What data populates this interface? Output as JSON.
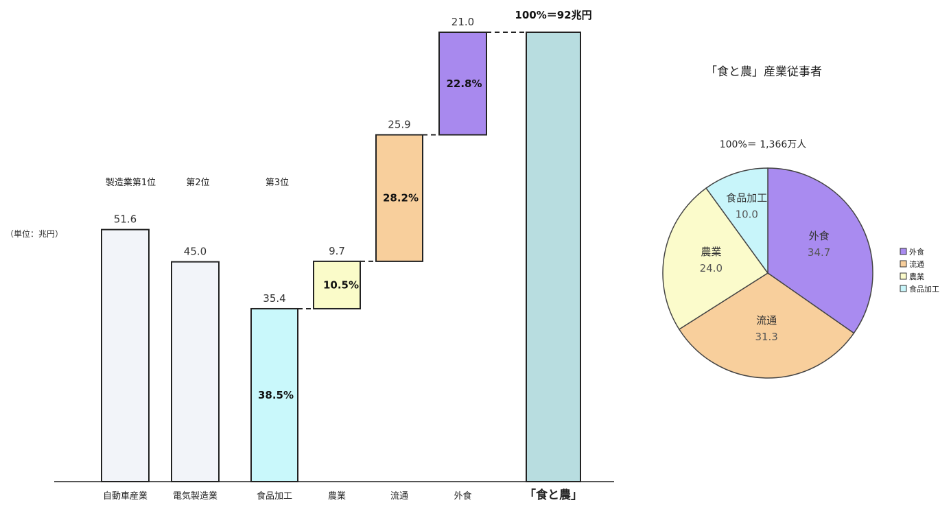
{
  "chart_data": [
    {
      "type": "bar",
      "subtype": "waterfall",
      "unit_note": "（単位：兆円）",
      "total_label": "100%＝92兆円",
      "ranks": [
        "製造業第1位",
        "第2位",
        "第3位"
      ],
      "categories": [
        "自動車産業",
        "電気製造業",
        "食品加工",
        "農業",
        "流通",
        "外食",
        "「食と農」"
      ],
      "values": [
        51.6,
        45.0,
        35.4,
        9.7,
        25.9,
        21.0,
        92
      ],
      "value_labels": [
        "51.6",
        "45.0",
        "35.4",
        "9.7",
        "25.9",
        "21.0",
        ""
      ],
      "share_labels": [
        "",
        "",
        "38.5%",
        "10.5%",
        "28.2%",
        "22.8%",
        ""
      ],
      "stack_bases": [
        0,
        0,
        0,
        35.4,
        45.1,
        71.0,
        0
      ],
      "colors": [
        "#f2f4f9",
        "#f2f4f9",
        "#c9f8fb",
        "#fafbc9",
        "#f8cf9c",
        "#a889ee",
        "#b8dde0"
      ],
      "ylim": [
        0,
        92
      ]
    },
    {
      "type": "pie",
      "title": "「食と農」産業従事者",
      "subtitle": "100%＝ 1,366万人",
      "slices": [
        {
          "label": "外食",
          "value": 34.7,
          "display": "34.7",
          "color": "#a98bf0"
        },
        {
          "label": "流通",
          "value": 31.3,
          "display": "31.3",
          "color": "#f8cf9c"
        },
        {
          "label": "農業",
          "value": 24.0,
          "display": "24.0",
          "color": "#fbfbcb"
        },
        {
          "label": "食品加工",
          "value": 10.0,
          "display": "10.0",
          "color": "#c8f5fa"
        }
      ],
      "legend": [
        "外食",
        "流通",
        "農業",
        "食品加工"
      ],
      "legend_position": "right"
    }
  ]
}
